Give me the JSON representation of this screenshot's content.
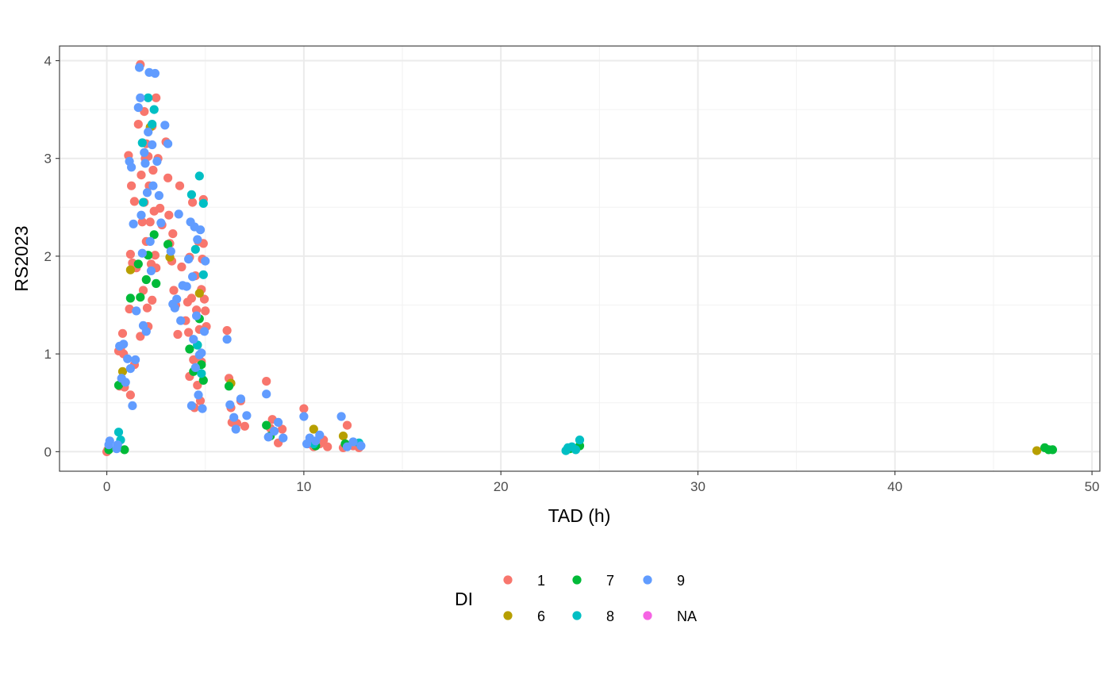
{
  "chart_data": {
    "type": "scatter",
    "title": "",
    "xlabel": "TAD (h)",
    "ylabel": "RS2023",
    "xlim": [
      -2.4,
      50.4
    ],
    "ylim": [
      -0.2,
      4.15
    ],
    "x_ticks": [
      0,
      10,
      20,
      30,
      40,
      50
    ],
    "y_ticks": [
      0,
      1,
      2,
      3,
      4
    ],
    "grid": true,
    "legend": {
      "title": "DI",
      "placement": "bottom",
      "entries": [
        {
          "label": "1",
          "color": "#F8766D"
        },
        {
          "label": "6",
          "color": "#B79F00"
        },
        {
          "label": "7",
          "color": "#00BA38"
        },
        {
          "label": "8",
          "color": "#00BFC4"
        },
        {
          "label": "9",
          "color": "#619CFF"
        },
        {
          "label": "NA",
          "color": "#F564E3"
        }
      ]
    },
    "series": [
      {
        "name": "1",
        "color": "#F8766D",
        "points": [
          [
            0,
            0
          ],
          [
            0.05,
            0.02
          ],
          [
            0.6,
            1.03
          ],
          [
            0.7,
            1.05
          ],
          [
            0.8,
            1.21
          ],
          [
            0.85,
            1.0
          ],
          [
            0.65,
            0.67
          ],
          [
            0.9,
            0.66
          ],
          [
            1.1,
            3.03
          ],
          [
            1.2,
            2.02
          ],
          [
            1.25,
            2.72
          ],
          [
            1.3,
            1.93
          ],
          [
            1.15,
            1.46
          ],
          [
            1.2,
            0.58
          ],
          [
            1.4,
            0.89
          ],
          [
            1.4,
            2.56
          ],
          [
            1.5,
            1.88
          ],
          [
            1.6,
            3.35
          ],
          [
            1.7,
            3.96
          ],
          [
            1.75,
            2.83
          ],
          [
            1.8,
            2.35
          ],
          [
            1.85,
            1.65
          ],
          [
            1.7,
            1.18
          ],
          [
            1.9,
            3.48
          ],
          [
            1.95,
            3.0
          ],
          [
            1.9,
            2.55
          ],
          [
            2.0,
            2.15
          ],
          [
            2.05,
            1.47
          ],
          [
            2.1,
            1.28
          ],
          [
            2.0,
            3.15
          ],
          [
            2.1,
            3.02
          ],
          [
            2.15,
            2.72
          ],
          [
            2.2,
            2.35
          ],
          [
            2.25,
            1.92
          ],
          [
            2.3,
            1.55
          ],
          [
            2.3,
            3.33
          ],
          [
            2.35,
            2.88
          ],
          [
            2.4,
            2.46
          ],
          [
            2.45,
            2.01
          ],
          [
            2.5,
            3.62
          ],
          [
            2.5,
            1.88
          ],
          [
            2.6,
            3.0
          ],
          [
            2.7,
            2.49
          ],
          [
            2.8,
            2.32
          ],
          [
            3.0,
            3.17
          ],
          [
            3.1,
            2.8
          ],
          [
            3.15,
            2.42
          ],
          [
            3.2,
            2.13
          ],
          [
            3.3,
            1.95
          ],
          [
            3.4,
            1.65
          ],
          [
            3.35,
            2.23
          ],
          [
            3.5,
            1.5
          ],
          [
            3.6,
            1.2
          ],
          [
            3.7,
            2.72
          ],
          [
            3.8,
            1.89
          ],
          [
            4.0,
            1.34
          ],
          [
            4.1,
            1.53
          ],
          [
            4.15,
            1.22
          ],
          [
            4.2,
            0.77
          ],
          [
            4.2,
            1.99
          ],
          [
            4.3,
            1.57
          ],
          [
            4.35,
            2.55
          ],
          [
            4.4,
            0.94
          ],
          [
            4.45,
            0.45
          ],
          [
            4.5,
            1.8
          ],
          [
            4.55,
            1.45
          ],
          [
            4.6,
            0.68
          ],
          [
            4.65,
            2.15
          ],
          [
            4.7,
            1.25
          ],
          [
            4.75,
            0.52
          ],
          [
            4.8,
            1.66
          ],
          [
            4.85,
            1.97
          ],
          [
            4.9,
            2.58
          ],
          [
            4.95,
            1.56
          ],
          [
            5.0,
            1.44
          ],
          [
            5.05,
            1.28
          ],
          [
            4.9,
            2.13
          ],
          [
            4.8,
            0.92
          ],
          [
            6.1,
            1.24
          ],
          [
            6.2,
            0.75
          ],
          [
            6.3,
            0.45
          ],
          [
            6.35,
            0.3
          ],
          [
            6.6,
            0.29
          ],
          [
            6.8,
            0.52
          ],
          [
            7.0,
            0.26
          ],
          [
            8.1,
            0.72
          ],
          [
            8.3,
            0.24
          ],
          [
            8.4,
            0.33
          ],
          [
            8.7,
            0.09
          ],
          [
            8.9,
            0.23
          ],
          [
            10.0,
            0.44
          ],
          [
            10.2,
            0.08
          ],
          [
            10.4,
            0.1
          ],
          [
            10.5,
            0.05
          ],
          [
            10.8,
            0.08
          ],
          [
            11.0,
            0.12
          ],
          [
            11.2,
            0.05
          ],
          [
            12.0,
            0.04
          ],
          [
            12.2,
            0.27
          ],
          [
            12.5,
            0.06
          ],
          [
            12.8,
            0.04
          ]
        ]
      },
      {
        "name": "6",
        "color": "#B79F00",
        "points": [
          [
            0.8,
            0.82
          ],
          [
            1.2,
            1.86
          ],
          [
            2.2,
            3.32
          ],
          [
            3.2,
            1.99
          ],
          [
            4.7,
            1.62
          ],
          [
            6.3,
            0.7
          ],
          [
            10.5,
            0.23
          ],
          [
            12.0,
            0.16
          ],
          [
            47.2,
            0.01
          ]
        ]
      },
      {
        "name": "7",
        "color": "#00BA38",
        "points": [
          [
            0.1,
            0.02
          ],
          [
            0.6,
            0.68
          ],
          [
            0.9,
            0.02
          ],
          [
            1.2,
            1.57
          ],
          [
            1.6,
            1.92
          ],
          [
            1.7,
            1.58
          ],
          [
            2.0,
            1.76
          ],
          [
            2.1,
            2.01
          ],
          [
            2.4,
            2.22
          ],
          [
            2.5,
            1.72
          ],
          [
            3.1,
            2.12
          ],
          [
            4.2,
            1.05
          ],
          [
            4.4,
            0.82
          ],
          [
            4.6,
            1.09
          ],
          [
            4.7,
            1.36
          ],
          [
            4.8,
            0.89
          ],
          [
            4.9,
            0.73
          ],
          [
            6.2,
            0.67
          ],
          [
            8.1,
            0.27
          ],
          [
            8.3,
            0.16
          ],
          [
            10.6,
            0.06
          ],
          [
            12.1,
            0.08
          ],
          [
            23.5,
            0.03
          ],
          [
            24.0,
            0.06
          ],
          [
            47.6,
            0.04
          ],
          [
            47.8,
            0.02
          ],
          [
            48.0,
            0.02
          ]
        ]
      },
      {
        "name": "8",
        "color": "#00BFC4",
        "points": [
          [
            0.6,
            0.2
          ],
          [
            0.7,
            0.12
          ],
          [
            1.8,
            3.16
          ],
          [
            1.85,
            2.55
          ],
          [
            2.1,
            3.62
          ],
          [
            2.3,
            3.35
          ],
          [
            2.4,
            3.5
          ],
          [
            4.3,
            2.63
          ],
          [
            4.5,
            2.07
          ],
          [
            4.6,
            1.09
          ],
          [
            4.7,
            2.82
          ],
          [
            4.8,
            0.8
          ],
          [
            4.9,
            1.81
          ],
          [
            4.9,
            2.54
          ],
          [
            10.5,
            0.08
          ],
          [
            23.3,
            0.01
          ],
          [
            23.4,
            0.04
          ],
          [
            23.6,
            0.05
          ],
          [
            23.8,
            0.02
          ],
          [
            24.0,
            0.12
          ],
          [
            12.8,
            0.09
          ]
        ]
      },
      {
        "name": "9",
        "color": "#619CFF",
        "points": [
          [
            0.1,
            0.07
          ],
          [
            0.15,
            0.11
          ],
          [
            0.5,
            0.03
          ],
          [
            0.55,
            0.07
          ],
          [
            0.65,
            1.08
          ],
          [
            0.75,
            0.75
          ],
          [
            0.85,
            1.1
          ],
          [
            0.95,
            0.71
          ],
          [
            1.05,
            0.95
          ],
          [
            1.15,
            2.97
          ],
          [
            1.2,
            0.85
          ],
          [
            1.25,
            2.91
          ],
          [
            1.3,
            0.47
          ],
          [
            1.35,
            2.33
          ],
          [
            1.45,
            0.94
          ],
          [
            1.5,
            1.44
          ],
          [
            1.6,
            3.52
          ],
          [
            1.65,
            3.93
          ],
          [
            1.7,
            3.62
          ],
          [
            1.75,
            2.42
          ],
          [
            1.8,
            2.03
          ],
          [
            1.85,
            1.29
          ],
          [
            1.9,
            3.06
          ],
          [
            1.95,
            2.95
          ],
          [
            2.0,
            1.23
          ],
          [
            2.05,
            2.65
          ],
          [
            2.1,
            3.27
          ],
          [
            2.15,
            3.88
          ],
          [
            2.2,
            2.15
          ],
          [
            2.25,
            1.85
          ],
          [
            2.3,
            3.14
          ],
          [
            2.35,
            2.72
          ],
          [
            2.45,
            3.87
          ],
          [
            2.55,
            2.97
          ],
          [
            2.65,
            2.62
          ],
          [
            2.75,
            2.34
          ],
          [
            2.95,
            3.34
          ],
          [
            3.1,
            3.15
          ],
          [
            3.25,
            2.05
          ],
          [
            3.35,
            1.51
          ],
          [
            3.45,
            1.47
          ],
          [
            3.55,
            1.56
          ],
          [
            3.65,
            2.43
          ],
          [
            3.75,
            1.34
          ],
          [
            3.85,
            1.7
          ],
          [
            4.05,
            1.69
          ],
          [
            4.15,
            1.97
          ],
          [
            4.25,
            2.35
          ],
          [
            4.3,
            0.47
          ],
          [
            4.35,
            1.79
          ],
          [
            4.4,
            1.15
          ],
          [
            4.45,
            2.3
          ],
          [
            4.5,
            0.86
          ],
          [
            4.55,
            1.39
          ],
          [
            4.6,
            2.17
          ],
          [
            4.65,
            0.58
          ],
          [
            4.7,
            0.99
          ],
          [
            4.75,
            2.27
          ],
          [
            4.8,
            1.01
          ],
          [
            4.85,
            0.44
          ],
          [
            4.95,
            1.23
          ],
          [
            5.0,
            1.95
          ],
          [
            6.1,
            1.15
          ],
          [
            6.25,
            0.48
          ],
          [
            6.45,
            0.35
          ],
          [
            6.55,
            0.23
          ],
          [
            6.8,
            0.54
          ],
          [
            7.1,
            0.37
          ],
          [
            8.1,
            0.59
          ],
          [
            8.2,
            0.15
          ],
          [
            8.5,
            0.21
          ],
          [
            8.7,
            0.3
          ],
          [
            8.95,
            0.14
          ],
          [
            10.0,
            0.36
          ],
          [
            10.15,
            0.08
          ],
          [
            10.3,
            0.14
          ],
          [
            10.6,
            0.11
          ],
          [
            10.8,
            0.17
          ],
          [
            11.9,
            0.36
          ],
          [
            12.2,
            0.05
          ],
          [
            12.5,
            0.1
          ],
          [
            12.9,
            0.06
          ]
        ]
      },
      {
        "name": "NA",
        "color": "#F564E3",
        "points": []
      }
    ]
  }
}
